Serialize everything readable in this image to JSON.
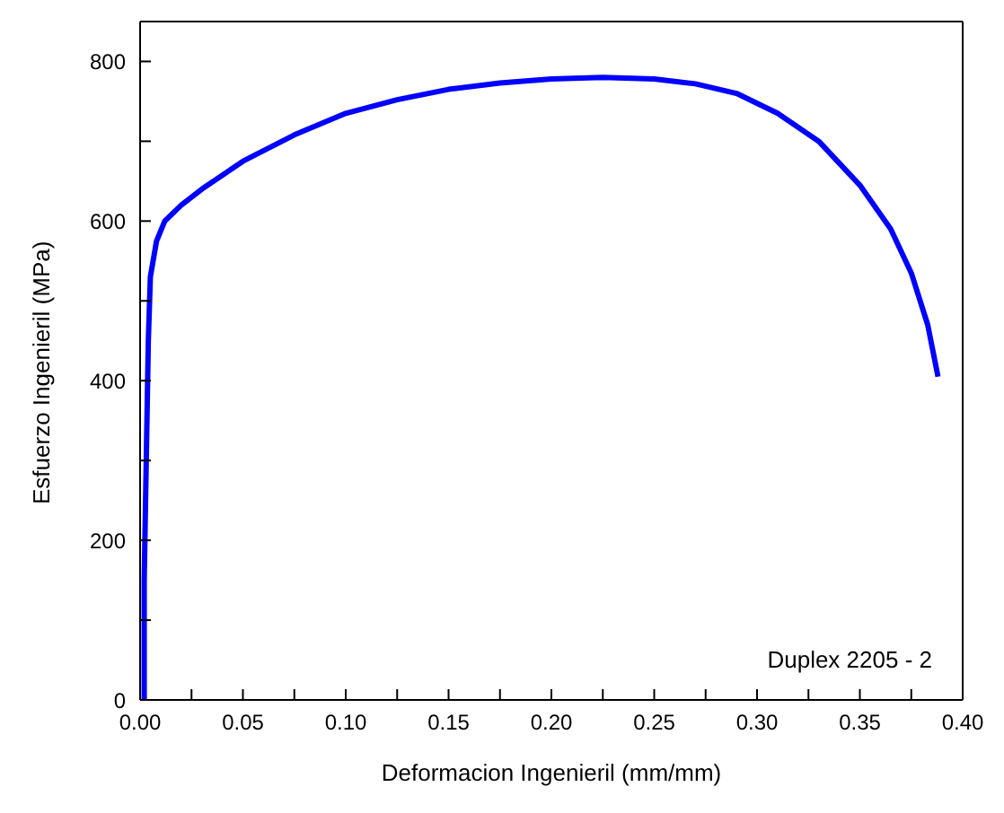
{
  "chart_data": {
    "type": "line",
    "xlabel": "Deformacion Ingenieril (mm/mm)",
    "ylabel": "Esfuerzo Ingenieril (MPa)",
    "annotations": [
      "Duplex 2205 - 2"
    ],
    "xlim": [
      0,
      0.4
    ],
    "ylim": [
      0,
      850
    ],
    "xticks": [
      {
        "value": 0,
        "label": "0.00"
      },
      {
        "value": 0.025,
        "label": null
      },
      {
        "value": 0.05,
        "label": "0.05"
      },
      {
        "value": 0.075,
        "label": null
      },
      {
        "value": 0.1,
        "label": "0.10"
      },
      {
        "value": 0.125,
        "label": null
      },
      {
        "value": 0.15,
        "label": "0.15"
      },
      {
        "value": 0.175,
        "label": null
      },
      {
        "value": 0.2,
        "label": "0.20"
      },
      {
        "value": 0.225,
        "label": null
      },
      {
        "value": 0.25,
        "label": "0.25"
      },
      {
        "value": 0.275,
        "label": null
      },
      {
        "value": 0.3,
        "label": "0.30"
      },
      {
        "value": 0.325,
        "label": null
      },
      {
        "value": 0.35,
        "label": "0.35"
      },
      {
        "value": 0.375,
        "label": null
      },
      {
        "value": 0.4,
        "label": "0.40"
      }
    ],
    "yticks": [
      0,
      {
        "value": 100,
        "label": null
      },
      200,
      {
        "value": 300,
        "label": null
      },
      400,
      {
        "value": 500,
        "label": null
      },
      600,
      {
        "value": 700,
        "label": null
      },
      800
    ],
    "grid": false,
    "legend": false,
    "marker": "none",
    "line_style": "solid",
    "series": [
      {
        "color": "#0000ff",
        "x": [
          0.002,
          0.002,
          0.003,
          0.004,
          0.005,
          0.008,
          0.012,
          0.02,
          0.03,
          0.05,
          0.075,
          0.1,
          0.125,
          0.15,
          0.175,
          0.2,
          0.225,
          0.25,
          0.27,
          0.29,
          0.31,
          0.33,
          0.35,
          0.365,
          0.375,
          0.383,
          0.388
        ],
        "values": [
          0,
          150,
          300,
          450,
          530,
          575,
          600,
          620,
          640,
          675,
          708,
          735,
          752,
          765,
          773,
          778,
          780,
          778,
          772,
          760,
          735,
          700,
          645,
          590,
          535,
          470,
          405
        ]
      }
    ]
  }
}
